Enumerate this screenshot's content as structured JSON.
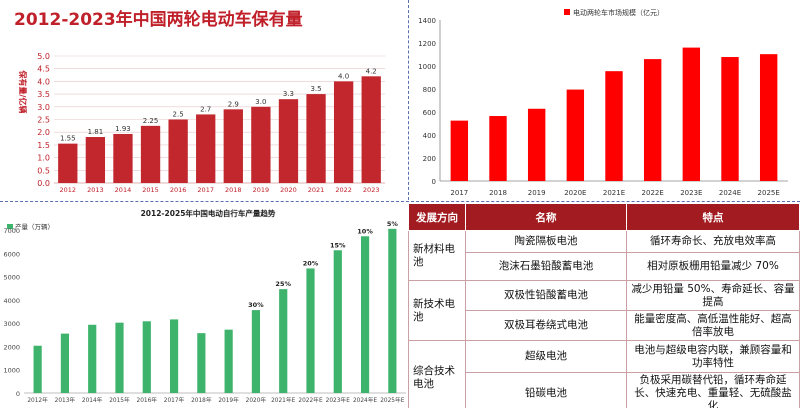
{
  "charts": [
    {
      "type": "bar",
      "title": "2012-2023年中国两轮电动车保有量",
      "ylabel": "保有量/亿辆",
      "categories": [
        "2012",
        "2013",
        "2014",
        "2015",
        "2016",
        "2017",
        "2018",
        "2019",
        "2020",
        "2021",
        "2022",
        "2023"
      ],
      "values": [
        1.55,
        1.81,
        1.93,
        2.25,
        2.5,
        2.7,
        2.9,
        3.0,
        3.3,
        3.5,
        4.0,
        4.2
      ],
      "data_labels": [
        "1.55",
        "1.81",
        "1.93",
        "2.25",
        "2.5",
        "2.7",
        "2.9",
        "3.0",
        "3.3",
        "3.5",
        "4.0",
        "4.2"
      ],
      "ylim": [
        0,
        5
      ],
      "yticks": [
        "0.0",
        "0.5",
        "1.0",
        "1.5",
        "2.0",
        "2.5",
        "3.0",
        "3.5",
        "4.0",
        "4.5",
        "5.0"
      ],
      "colors": {
        "title": "#c0202a",
        "bar": "#c1272d",
        "grid": "#e6c8c8"
      }
    },
    {
      "type": "bar",
      "legend": "电动两轮车市场规模（亿元）",
      "categories": [
        "2017",
        "2018",
        "2019",
        "2020E",
        "2021E",
        "2022E",
        "2023E",
        "2024E",
        "2025E"
      ],
      "values": [
        525,
        565,
        628,
        795,
        955,
        1060,
        1160,
        1078,
        1103
      ],
      "ylim": [
        0,
        1400
      ],
      "yticks": [
        "0",
        "200",
        "400",
        "600",
        "800",
        "1000",
        "1200",
        "1400"
      ],
      "colors": {
        "bar": "#ff0000"
      }
    },
    {
      "type": "bar",
      "title": "2012-2025年中国电动自行车产量趋势",
      "legend": "产量（万辆）",
      "categories": [
        "2012年",
        "2013年",
        "2014年",
        "2015年",
        "2016年",
        "2017年",
        "2018年",
        "2019年",
        "2020年",
        "2021年E",
        "2022年E",
        "2023年E",
        "2024年E",
        "2025年E"
      ],
      "values": [
        2030,
        2550,
        2930,
        3020,
        3080,
        3160,
        2570,
        2720,
        3560,
        4460,
        5350,
        6130,
        6730,
        7050
      ],
      "growth_labels": [
        "",
        "",
        "",
        "",
        "",
        "",
        "",
        "",
        "30%",
        "25%",
        "20%",
        "15%",
        "10%",
        "5%"
      ],
      "ylim": [
        0,
        7000
      ],
      "yticks": [
        "0",
        "1000",
        "2000",
        "3000",
        "4000",
        "5000",
        "6000",
        "7000"
      ],
      "colors": {
        "bar": "#3db36b"
      }
    }
  ],
  "table": {
    "headers": [
      "发展方向",
      "名称",
      "特点"
    ],
    "groups": [
      {
        "direction": "新材料电池",
        "rows": [
          {
            "name": "陶瓷隔板电池",
            "feature": "循环寿命长、充放电效率高"
          },
          {
            "name": "泡沫石墨铅酸蓄电池",
            "feature": "相对原板栅用铅量减少 70%"
          }
        ]
      },
      {
        "direction": "新技术电池",
        "rows": [
          {
            "name": "双极性铅酸蓄电池",
            "feature": "减少用铅量 50%、寿命延长、容量提高"
          },
          {
            "name": "双极耳卷绕式电池",
            "feature": "能量密度高、高低温性能好、超高倍率放电"
          }
        ]
      },
      {
        "direction": "综合技术电池",
        "rows": [
          {
            "name": "超级电池",
            "feature": "电池与超级电容内联，兼顾容量和功率特性"
          },
          {
            "name": "铅碳电池",
            "feature": "负极采用碳替代铅，循环寿命延长、快速充电、重量轻、无硫酸盐化"
          }
        ]
      }
    ],
    "colors": {
      "header": "#a11b20",
      "border": "#c9a0a6"
    }
  }
}
